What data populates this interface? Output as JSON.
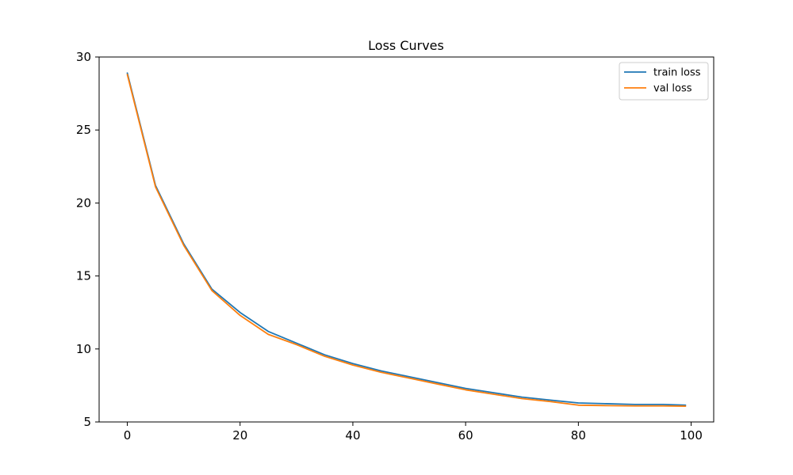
{
  "chart_data": {
    "type": "line",
    "title": "Loss Curves",
    "xlabel": "",
    "ylabel": "",
    "xlim": [
      -5,
      104
    ],
    "ylim": [
      5,
      30
    ],
    "xticks": [
      0,
      20,
      40,
      60,
      80,
      100
    ],
    "yticks": [
      5,
      10,
      15,
      20,
      25,
      30
    ],
    "grid": false,
    "legend_position": "top-right",
    "series": [
      {
        "name": "train loss",
        "color": "#1f77b4",
        "x": [
          0,
          5,
          10,
          15,
          20,
          25,
          30,
          35,
          40,
          45,
          50,
          55,
          60,
          65,
          70,
          75,
          80,
          85,
          90,
          95,
          99
        ],
        "y": [
          28.9,
          21.2,
          17.2,
          14.1,
          12.5,
          11.2,
          10.4,
          9.6,
          9.0,
          8.5,
          8.1,
          7.7,
          7.3,
          7.0,
          6.7,
          6.5,
          6.3,
          6.25,
          6.2,
          6.2,
          6.15
        ]
      },
      {
        "name": "val loss",
        "color": "#ff7f0e",
        "x": [
          0,
          5,
          10,
          15,
          20,
          25,
          30,
          35,
          40,
          45,
          50,
          55,
          60,
          65,
          70,
          75,
          80,
          85,
          90,
          95,
          99
        ],
        "y": [
          28.8,
          21.1,
          17.1,
          14.0,
          12.3,
          11.0,
          10.3,
          9.5,
          8.9,
          8.4,
          8.0,
          7.6,
          7.2,
          6.9,
          6.6,
          6.4,
          6.15,
          6.12,
          6.1,
          6.1,
          6.08
        ]
      }
    ]
  }
}
